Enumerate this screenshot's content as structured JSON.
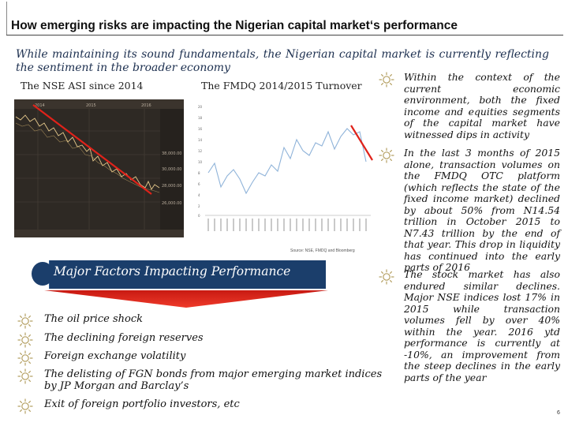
{
  "slide": {
    "title": "How emerging risks are impacting the Nigerian capital market‘s performance",
    "subtitle": "While maintaining its sound fundamentals, the Nigerian capital market is currently reflecting the sentiment in the broader economy",
    "nse_caption": "The NSE ASI since 2014",
    "fmdq_caption": "The FMDQ 2014/2015 Turnover",
    "source_note": "Source: NSE, FMDQ and Bloomberg",
    "page_number": "6"
  },
  "icons": {
    "bullet_icon": "sun-icon",
    "accent_color": "#b5a063",
    "banner_color": "#1b3e6b",
    "arrow_color": "#e8241a"
  },
  "nse_chart": {
    "type": "line",
    "year_labels": [
      "2014",
      "2015",
      "2016"
    ],
    "y_ticks": [
      "38,000.00",
      "30,000.00",
      "28,000.00",
      "26,000.00"
    ],
    "trend": "declining"
  },
  "fmdq_chart": {
    "type": "line",
    "y_ticks": [
      "20",
      "18",
      "16",
      "14",
      "12",
      "10",
      "8",
      "6",
      "4",
      "2",
      "0"
    ],
    "trend": "rise then decline"
  },
  "banner": {
    "label": "Major Factors Impacting Performance"
  },
  "factors": [
    "The oil price shock",
    "The declining foreign reserves",
    "Foreign exchange volatility",
    "The delisting of FGN bonds from major emerging market indices by JP Morgan and Barclay’s",
    "Exit of foreign portfolio investors, etc"
  ],
  "bullets": [
    "Within the context of the current economic environment, both the fixed income and equities segments of the capital market have witnessed dips in activity",
    "In the last 3 months of 2015 alone, transaction volumes on the FMDQ OTC platform (which reflects the state of the fixed income market) declined by about 50% from N14.54 trillion in October 2015 to N7.43 trillion by the end of that year. This drop in liquidity has continued into the early parts of 2016",
    "The stock market has also endured similar declines. Major NSE indices lost 17% in 2015 while transaction volumes fell by over 40% within the year. 2016 ytd performance is currently at -10%, an improvement from the steep declines in the early parts of the year"
  ]
}
